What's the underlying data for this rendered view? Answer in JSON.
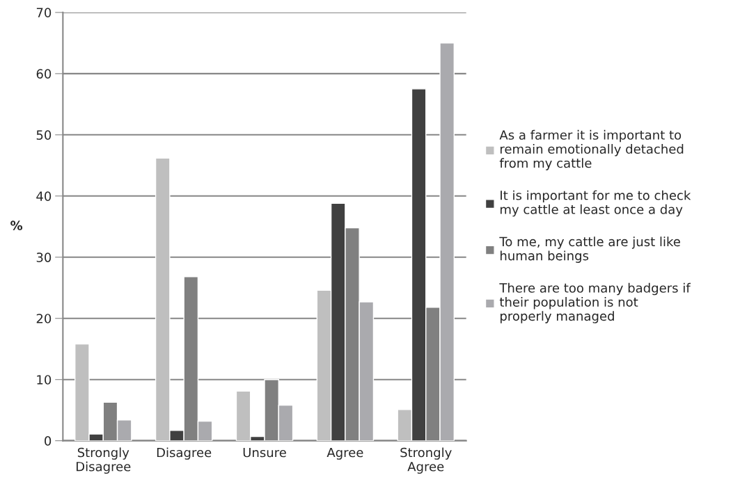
{
  "chart_data": {
    "type": "bar",
    "ylabel": "%",
    "categories": [
      "Strongly\nDisagree",
      "Disagree",
      "Unsure",
      "Agree",
      "Strongly\nAgree"
    ],
    "series": [
      {
        "name": "As a farmer it is important to remain emotionally detached from my cattle",
        "color": "#bfbfbf",
        "values": [
          15.8,
          46.2,
          8.1,
          24.6,
          5.1
        ]
      },
      {
        "name": "It is important for me to check my cattle at least once a day",
        "color": "#404040",
        "values": [
          1.1,
          1.7,
          0.7,
          38.8,
          57.5
        ]
      },
      {
        "name": "To me, my cattle are just like human beings",
        "color": "#808080",
        "values": [
          6.3,
          26.8,
          10.0,
          34.8,
          21.8
        ]
      },
      {
        "name": "There are too many badgers if their population is not properly managed",
        "color": "#aaaaae",
        "values": [
          3.4,
          3.2,
          5.8,
          22.7,
          65.0
        ]
      }
    ],
    "ylim": [
      0,
      70
    ],
    "yticks": [
      0,
      10,
      20,
      30,
      40,
      50,
      60,
      70
    ],
    "grid": "y",
    "legend": "right"
  }
}
